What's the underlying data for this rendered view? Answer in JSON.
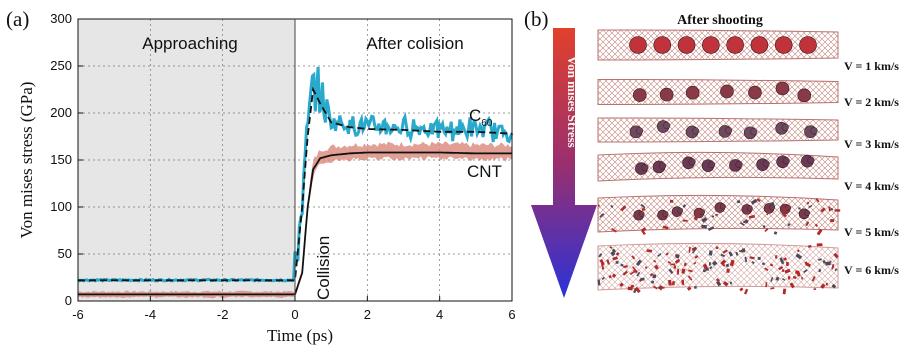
{
  "panel_a": {
    "label": "(a)"
  },
  "panel_b": {
    "label": "(b)",
    "title": "After shooting",
    "arrow_label": "Von mises Stress",
    "velocities": [
      "V = 1 km/s",
      "V = 2 km/s",
      "V = 3 km/s",
      "V = 4 km/s",
      "V = 5 km/s",
      "V = 6 km/s"
    ]
  },
  "annotations": {
    "approaching": "Approaching",
    "after": "After colision",
    "collision": "Collision",
    "c60_main": "C",
    "c60_sub": "60",
    "cnt": "CNT"
  },
  "colors": {
    "c60": "#29a9cc",
    "cnt_band": "#d9877a",
    "cnt_line": "#111111",
    "shade": "#e6e6e6"
  },
  "chart_data": {
    "type": "line",
    "xlabel": "Time (ps)",
    "ylabel": "Von mises stress (GPa)",
    "xlim": [
      -6,
      6
    ],
    "ylim": [
      0,
      300
    ],
    "xticks": [
      -6,
      -4,
      -2,
      0,
      2,
      4,
      6
    ],
    "yticks": [
      0,
      50,
      100,
      150,
      200,
      250,
      300
    ],
    "grid": true,
    "shaded_region": [
      -6,
      0
    ],
    "series": [
      {
        "name": "C60",
        "x": [
          -6,
          -3,
          0,
          0.2,
          0.35,
          0.5,
          0.7,
          1,
          1.5,
          2,
          3,
          4,
          5,
          6
        ],
        "y": [
          22,
          22,
          22,
          100,
          175,
          225,
          210,
          190,
          185,
          183,
          182,
          180,
          180,
          178
        ]
      },
      {
        "name": "CNT",
        "x": [
          -6,
          -3,
          0,
          0.2,
          0.35,
          0.5,
          0.7,
          1,
          1.5,
          2,
          3,
          4,
          5,
          6
        ],
        "y": [
          7,
          7,
          7,
          30,
          100,
          140,
          152,
          155,
          157,
          158,
          158,
          158,
          157,
          157
        ]
      }
    ]
  }
}
